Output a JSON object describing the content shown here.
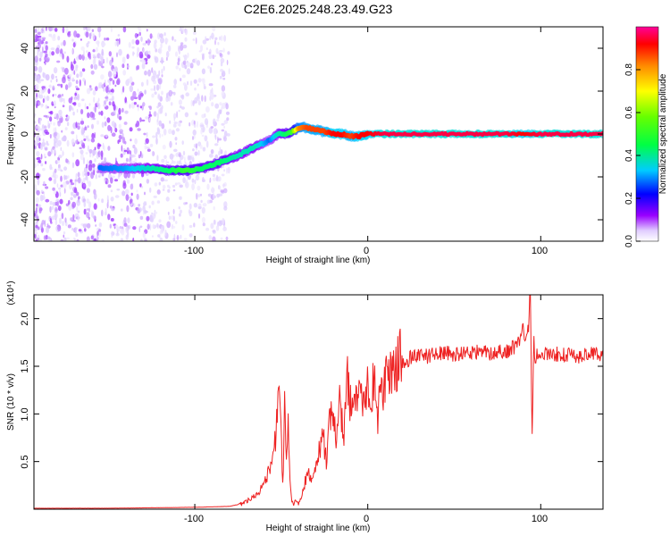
{
  "title": "C2E6.2025.248.23.49.G23",
  "chart_data": [
    {
      "type": "heatmap",
      "name": "spectrogram",
      "xlabel": "Height of straight line (km)",
      "ylabel": "Frequency (Hz)",
      "xlim": [
        -193,
        136
      ],
      "ylim": [
        -50,
        50
      ],
      "xticks": [
        -100,
        0,
        100
      ],
      "yticks": [
        -40,
        -20,
        0,
        20,
        40
      ],
      "tick_labels_x": [
        "-100",
        "0",
        "100"
      ],
      "tick_labels_y": [
        "-40",
        "-20",
        "0",
        "20",
        "40"
      ],
      "colorbar": {
        "label": "Normalized spectral amplitude",
        "range": [
          0,
          1
        ],
        "ticks": [
          0.0,
          0.2,
          0.4,
          0.6,
          0.8
        ],
        "tick_labels": [
          "0.0",
          "0.2",
          "0.4",
          "0.6",
          "0.8"
        ],
        "colormap": [
          "#ffffff",
          "#ddccff",
          "#8800ff",
          "#0000ff",
          "#00ccff",
          "#00ff66",
          "#66ff00",
          "#ffff00",
          "#ff8800",
          "#ff0000",
          "#ff0088"
        ]
      },
      "ridge": {
        "x": [
          -155,
          -140,
          -125,
          -115,
          -105,
          -95,
          -85,
          -75,
          -65,
          -57,
          -52,
          -48,
          -44,
          -40,
          -35,
          -30,
          -25,
          -20,
          -15,
          -10,
          -5,
          0,
          10,
          20,
          40,
          60,
          80,
          90,
          100,
          120,
          136
        ],
        "y": [
          -16,
          -16,
          -16,
          -17,
          -17,
          -16,
          -13,
          -10,
          -6,
          -3,
          0,
          0,
          1,
          3,
          3,
          2,
          1,
          0,
          0,
          -1,
          -1,
          0,
          0,
          0,
          0,
          0,
          0,
          0,
          0,
          0,
          0
        ],
        "amplitude": [
          0.35,
          0.38,
          0.45,
          0.5,
          0.55,
          0.5,
          0.5,
          0.45,
          0.45,
          0.35,
          0.45,
          0.5,
          0.55,
          0.8,
          0.85,
          0.85,
          0.85,
          0.9,
          0.9,
          0.85,
          0.9,
          0.9,
          0.95,
          0.95,
          0.95,
          0.95,
          0.95,
          0.9,
          0.95,
          0.95,
          0.95
        ]
      },
      "noise_region_x": [
        -193,
        -80
      ]
    },
    {
      "type": "line",
      "name": "snr",
      "xlabel": "Height of straight line (km)",
      "ylabel": "SNR (10 * v/v)",
      "y_multiplier_label": "(x10⁴)",
      "xlim": [
        -193,
        136
      ],
      "ylim": [
        0,
        2.25
      ],
      "xticks": [
        -100,
        0,
        100
      ],
      "yticks": [
        0.5,
        1.0,
        1.5,
        2.0
      ],
      "tick_labels_x": [
        "-100",
        "0",
        "100"
      ],
      "tick_labels_y": [
        "0.5",
        "1.0",
        "1.5",
        "2.0"
      ],
      "series": [
        {
          "name": "SNR",
          "color": "#ee2222",
          "x": [
            -193,
            -150,
            -100,
            -80,
            -72,
            -65,
            -60,
            -56,
            -53,
            -51,
            -50,
            -49,
            -48,
            -47,
            -46,
            -45,
            -44,
            -43,
            -42,
            -40,
            -38,
            -36,
            -34,
            -32,
            -30,
            -28,
            -26,
            -24,
            -22,
            -20,
            -18,
            -16,
            -14,
            -12,
            -10,
            -8,
            -6,
            -4,
            -2,
            0,
            2,
            4,
            6,
            8,
            10,
            12,
            14,
            16,
            18,
            20,
            25,
            30,
            35,
            40,
            50,
            60,
            70,
            80,
            85,
            88,
            90,
            92,
            93,
            94,
            95,
            96,
            97,
            98,
            100,
            110,
            120,
            130,
            136
          ],
          "y": [
            0.01,
            0.01,
            0.02,
            0.03,
            0.06,
            0.15,
            0.25,
            0.45,
            0.8,
            1.22,
            0.7,
            0.2,
            1.12,
            0.5,
            0.9,
            0.3,
            0.1,
            0.05,
            0.1,
            0.05,
            0.15,
            0.3,
            0.4,
            0.3,
            0.5,
            0.6,
            0.8,
            0.5,
            1.05,
            0.9,
            0.7,
            1.2,
            0.75,
            1.4,
            1.1,
            1.25,
            1.0,
            1.3,
            1.15,
            1.3,
            1.2,
            1.35,
            0.95,
            1.4,
            1.25,
            1.45,
            1.55,
            1.45,
            1.6,
            1.5,
            1.6,
            1.63,
            1.6,
            1.65,
            1.62,
            1.65,
            1.64,
            1.66,
            1.7,
            1.8,
            1.9,
            1.75,
            1.95,
            2.3,
            0.75,
            1.8,
            1.5,
            1.65,
            1.62,
            1.63,
            1.6,
            1.64,
            1.6
          ]
        }
      ]
    }
  ]
}
